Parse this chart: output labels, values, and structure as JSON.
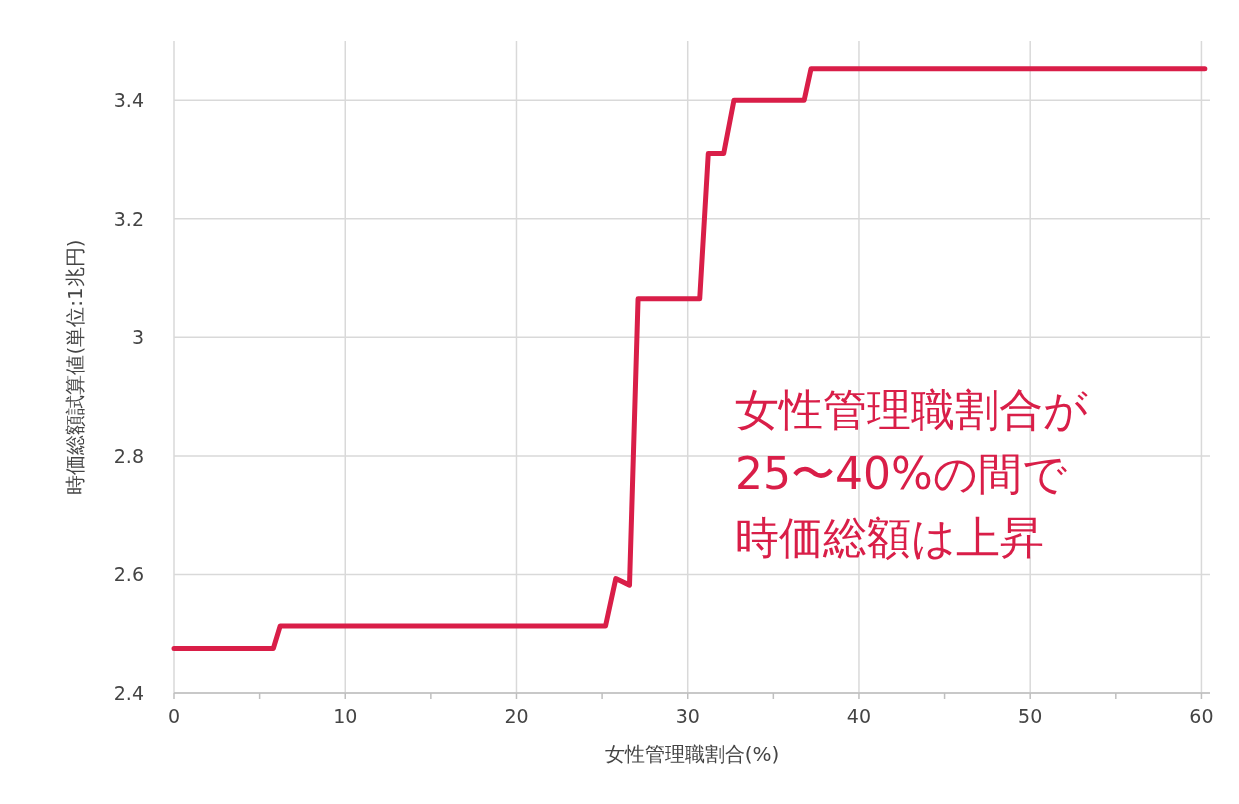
{
  "chart_data": {
    "type": "line",
    "xlabel": "女性管理職割合(%)",
    "ylabel": "時価総額試算値(単位:1兆円)",
    "annotations": [
      "女性管理職割合が",
      "25〜40%の間で",
      "時価総額は上昇"
    ],
    "x": [
      0,
      5.8,
      6.2,
      25.2,
      25.8,
      26.6,
      27.1,
      30.7,
      31.2,
      32.1,
      32.7,
      36.8,
      37.2,
      60.2
    ],
    "values": [
      2.475,
      2.475,
      2.513,
      2.513,
      2.593,
      2.582,
      3.065,
      3.065,
      3.31,
      3.31,
      3.4,
      3.4,
      3.453,
      3.453
    ],
    "color": "#d91e48",
    "xlim": [
      0,
      60.5
    ],
    "xticks": [
      0,
      {
        "value": 5,
        "label": null
      },
      10,
      {
        "value": 15,
        "label": null
      },
      20,
      {
        "value": 25,
        "label": null
      },
      30,
      {
        "value": 35,
        "label": null
      },
      40,
      {
        "value": 45,
        "label": null
      },
      50,
      {
        "value": 55,
        "label": null
      },
      60
    ],
    "ylim": [
      2.4,
      3.5
    ],
    "yticks": [
      2.4,
      2.6,
      2.8,
      3,
      3.2,
      3.4
    ],
    "grid": true,
    "marker": "none",
    "line_style": "solid"
  }
}
